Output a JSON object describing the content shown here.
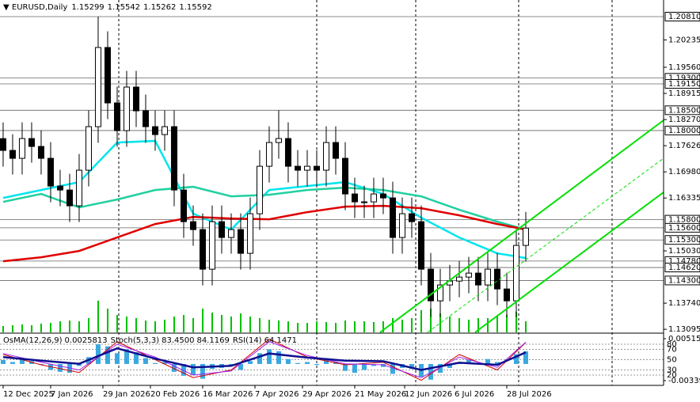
{
  "chart_data": [
    {
      "type": "candlestick",
      "symbol": "EURUSD,Daily",
      "quote": [
        "1.15299",
        "1.15542",
        "1.15262",
        "1.15592"
      ],
      "xlim": [
        -0.33,
        69.5
      ],
      "xticks": [
        {
          "value": 0,
          "label": "12 Dec 2025"
        },
        {
          "value": 5,
          "label": "7 Jan 2026"
        },
        {
          "value": 10.5,
          "label": "29 Jan 2026"
        },
        {
          "value": 15.5,
          "label": "20 Feb 2026"
        },
        {
          "value": 21,
          "label": "16 Mar 2026"
        },
        {
          "value": 26.5,
          "label": "7 Apr 2026"
        },
        {
          "value": 31.5,
          "label": "29 Apr 2026"
        },
        {
          "value": 37,
          "label": "21 May 2026"
        },
        {
          "value": 42.25,
          "label": "12 Jun 2026"
        },
        {
          "value": 47.5,
          "label": "6 Jul 2026"
        },
        {
          "value": 53,
          "label": "28 Jul 2026"
        }
      ],
      "ylim": [
        1.1302,
        1.2122
      ],
      "yticks": [
        {
          "value": 1.20235,
          "label": "1.20235"
        },
        {
          "value": 1.1956,
          "label": "1.19560"
        },
        {
          "value": 1.18915,
          "label": "1.18915"
        },
        {
          "value": 1.1827,
          "label": "1.18270"
        },
        {
          "value": 1.17626,
          "label": "1.17626"
        },
        {
          "value": 1.1698,
          "label": "1.16980"
        },
        {
          "value": 1.16335,
          "label": "1.16335"
        },
        {
          "value": 1.1503,
          "label": "1.15030"
        },
        {
          "value": 1.1374,
          "label": "1.13740"
        },
        {
          "value": 1.13095,
          "label": "1.13095"
        }
      ],
      "levels": [
        {
          "value": 1.2081,
          "label": "1.20810"
        },
        {
          "value": 1.193,
          "label": "1.19300"
        },
        {
          "value": 1.1915,
          "label": "1.19150"
        },
        {
          "value": 1.185,
          "label": "1.18500"
        },
        {
          "value": 1.18,
          "label": "1.18000"
        },
        {
          "value": 1.158,
          "label": "1.15800"
        },
        {
          "value": 1.156,
          "label": "1.15600"
        },
        {
          "value": 1.153,
          "label": "1.15300"
        },
        {
          "value": 1.1478,
          "label": "1.14780"
        },
        {
          "value": 1.1462,
          "label": "1.14620"
        },
        {
          "value": 1.143,
          "label": "1.14300"
        }
      ],
      "candle_color": "#000000",
      "candles": {
        "open": [
          1.178,
          1.17509,
          1.17314,
          1.17802,
          1.17607,
          1.17314,
          1.1663,
          1.16532,
          1.16142,
          1.17021,
          1.18095,
          1.20048,
          1.18681,
          1.17997,
          1.19072,
          1.18486,
          1.18095,
          1.179,
          1.18095,
          1.16532,
          1.15751,
          1.15556,
          1.14579,
          1.15751,
          1.15361,
          1.15556,
          1.1497,
          1.15947,
          1.17118,
          1.17704,
          1.17802,
          1.17118,
          1.17021,
          1.17118,
          1.17021,
          1.17704,
          1.17314,
          1.16435,
          1.1624,
          1.1624,
          1.16435,
          1.16337,
          1.15361,
          1.15947,
          1.15751,
          1.14579,
          1.13798,
          1.14189,
          1.14286,
          1.14384,
          1.14482,
          1.14189,
          1.14579,
          1.14091,
          1.13798,
          1.15165
        ],
        "high": [
          1.182,
          1.17909,
          1.18202,
          1.18202,
          1.18007,
          1.17714,
          1.1703,
          1.16932,
          1.17421,
          1.18495,
          1.2081,
          1.20448,
          1.19081,
          1.19472,
          1.19472,
          1.18886,
          1.18495,
          1.18495,
          1.18495,
          1.16932,
          1.16151,
          1.15956,
          1.16151,
          1.16151,
          1.15956,
          1.15956,
          1.16347,
          1.17518,
          1.18104,
          1.185,
          1.18202,
          1.17518,
          1.17518,
          1.17518,
          1.18104,
          1.18104,
          1.17714,
          1.16835,
          1.1664,
          1.16835,
          1.16835,
          1.16737,
          1.16347,
          1.16347,
          1.16151,
          1.14979,
          1.14589,
          1.14686,
          1.14784,
          1.14882,
          1.14882,
          1.14979,
          1.14979,
          1.14491,
          1.15565,
          1.15992
        ],
        "low": [
          1.17109,
          1.16914,
          1.16914,
          1.17207,
          1.16914,
          1.1623,
          1.16132,
          1.15742,
          1.15742,
          1.16621,
          1.17695,
          1.18281,
          1.17597,
          1.17597,
          1.18086,
          1.17695,
          1.175,
          1.175,
          1.16132,
          1.15351,
          1.15156,
          1.14179,
          1.14179,
          1.14961,
          1.14961,
          1.1457,
          1.1457,
          1.15547,
          1.16718,
          1.17304,
          1.16718,
          1.16621,
          1.16621,
          1.16621,
          1.16621,
          1.16914,
          1.16035,
          1.1584,
          1.1584,
          1.1584,
          1.15937,
          1.14961,
          1.14961,
          1.15351,
          1.14179,
          1.13398,
          1.13398,
          1.13789,
          1.13886,
          1.13984,
          1.13789,
          1.13789,
          1.13691,
          1.13398,
          1.13398,
          1.14765
        ],
        "close": [
          1.17509,
          1.17314,
          1.17802,
          1.17607,
          1.17314,
          1.1663,
          1.16532,
          1.16142,
          1.17021,
          1.18095,
          1.20048,
          1.18681,
          1.17997,
          1.19072,
          1.18486,
          1.18095,
          1.179,
          1.18095,
          1.16532,
          1.15751,
          1.15556,
          1.14579,
          1.15751,
          1.15361,
          1.15556,
          1.1497,
          1.15947,
          1.17118,
          1.17704,
          1.17802,
          1.17118,
          1.17021,
          1.17118,
          1.17021,
          1.17704,
          1.17314,
          1.16435,
          1.1624,
          1.1624,
          1.16435,
          1.16337,
          1.15361,
          1.15947,
          1.15751,
          1.14579,
          1.13798,
          1.14189,
          1.14286,
          1.14384,
          1.14482,
          1.14189,
          1.14579,
          1.14091,
          1.13798,
          1.15165,
          1.15592
        ]
      },
      "volume_color": "#00c000",
      "volume": [
        8,
        9,
        10,
        9,
        11,
        12,
        14,
        15,
        14,
        18,
        40,
        30,
        22,
        20,
        18,
        15,
        14,
        16,
        20,
        22,
        18,
        30,
        25,
        22,
        20,
        24,
        20,
        18,
        16,
        15,
        14,
        12,
        12,
        14,
        13,
        12,
        15,
        14,
        14,
        13,
        14,
        18,
        16,
        18,
        28,
        30,
        24,
        20,
        18,
        16,
        18,
        18,
        20,
        22,
        26,
        14
      ],
      "series": [
        {
          "color": "#00e5ee",
          "x": [
            0,
            4,
            8,
            12,
            16,
            20,
            24,
            28,
            32,
            36,
            40,
            44,
            48,
            52,
            55
          ],
          "values": [
            1.16337,
            1.16532,
            1.16728,
            1.17704,
            1.17743,
            1.15947,
            1.15556,
            1.16532,
            1.1663,
            1.16728,
            1.16435,
            1.15849,
            1.15361,
            1.1497,
            1.14853
          ]
        },
        {
          "color": "#20d0a0",
          "x": [
            0,
            4,
            8,
            12,
            16,
            20,
            24,
            28,
            32,
            36,
            40,
            44,
            48,
            52,
            55
          ],
          "values": [
            1.1624,
            1.16435,
            1.16103,
            1.16298,
            1.16532,
            1.16611,
            1.16376,
            1.16415,
            1.16532,
            1.16591,
            1.16532,
            1.16376,
            1.16044,
            1.15751,
            1.15556
          ]
        },
        {
          "color": "#e00000",
          "x": [
            0,
            4,
            8,
            12,
            16,
            20,
            24,
            28,
            32,
            36,
            40,
            44,
            48,
            52,
            55
          ],
          "values": [
            1.14775,
            1.14872,
            1.15029,
            1.15361,
            1.15693,
            1.15868,
            1.15829,
            1.1581,
            1.15986,
            1.16122,
            1.16142,
            1.16083,
            1.15907,
            1.15693,
            1.15556
          ]
        }
      ]
    },
    {
      "type": "oscillator",
      "header": [
        "OsMA(12,26,9)",
        "0.0025813",
        "Stoch(5,3,3)",
        "83.4500",
        "84.1169",
        "RSI(14)",
        "64.1471"
      ],
      "ylim": [
        -0.00436,
        0.00612
      ],
      "yticks": [
        0.0051514,
        -0.00339
      ],
      "y2lim": [
        0,
        100
      ],
      "y2ticks": [
        80,
        70,
        50,
        30,
        20
      ],
      "histogram_color": "#3aa8e0",
      "values": [
        0.0008,
        0.0004,
        0.001,
        0.0006,
        -0.0002,
        -0.0012,
        -0.0016,
        -0.0018,
        -0.0004,
        0.0014,
        0.004,
        0.0036,
        0.0022,
        0.003,
        0.0024,
        0.0012,
        0.0002,
        0.0004,
        -0.0016,
        -0.0024,
        -0.0022,
        -0.003,
        -0.001,
        -0.0008,
        -0.0004,
        -0.0012,
        0.0006,
        0.0022,
        0.003,
        0.0026,
        0.001,
        0.0002,
        0.0004,
        -0.0002,
        0.0012,
        0.0004,
        -0.0014,
        -0.0018,
        -0.0012,
        -0.0004,
        -0.0006,
        -0.002,
        -0.0008,
        -0.001,
        -0.0026,
        -0.0032,
        -0.0018,
        -0.0008,
        0.0004,
        0.0008,
        0.0002,
        0.001,
        0.0004,
        0,
        0.002,
        0.0025813
      ],
      "series": [
        {
          "color": "#d00000",
          "axis": "y2",
          "x": [
            0,
            4,
            8,
            12,
            16,
            20,
            24,
            28,
            32,
            36,
            40,
            44,
            48,
            52,
            55
          ],
          "values": [
            60,
            40,
            25,
            85,
            50,
            15,
            30,
            90,
            55,
            40,
            45,
            10,
            60,
            30,
            83.45
          ]
        },
        {
          "color": "#a020f0",
          "axis": "y2",
          "x": [
            0,
            4,
            8,
            12,
            16,
            20,
            24,
            28,
            32,
            36,
            40,
            44,
            48,
            52,
            55
          ],
          "values": [
            62,
            45,
            30,
            80,
            55,
            20,
            28,
            85,
            58,
            42,
            40,
            15,
            55,
            35,
            84.1169
          ]
        },
        {
          "color": "#101090",
          "axis": "y2",
          "x": [
            0,
            4,
            8,
            12,
            16,
            20,
            24,
            28,
            32,
            36,
            40,
            44,
            48,
            52,
            55
          ],
          "values": [
            55,
            48,
            42,
            72,
            52,
            35,
            38,
            62,
            54,
            48,
            47,
            30,
            44,
            40,
            64.1471
          ]
        }
      ]
    }
  ]
}
